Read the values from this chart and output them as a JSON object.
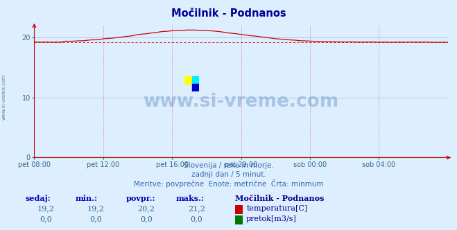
{
  "title": "Močilnik - Podnanos",
  "background_color": "#ddeeff",
  "plot_bg_color": "#ddeeff",
  "x_labels": [
    "pet 08:00",
    "pet 12:00",
    "pet 16:00",
    "pet 20:00",
    "sob 00:00",
    "sob 04:00"
  ],
  "ylim": [
    0,
    22
  ],
  "yticks": [
    0,
    10,
    20
  ],
  "temp_min": 19.2,
  "temp_max": 21.2,
  "temp_avg": 20.2,
  "temp_current": 19.2,
  "temp_color": "#cc0000",
  "flow_color": "#007700",
  "grid_color_v": "#dd8888",
  "grid_color_h": "#aabbcc",
  "watermark_color": "#3366aa",
  "subtitle_line1": "Slovenija / reke in morje.",
  "subtitle_line2": "zadnji dan / 5 minut.",
  "subtitle_line3": "Meritve: povprečne  Enote: metrične  Črta: minmum",
  "label_sedaj": "sedaj:",
  "label_min": "min.:",
  "label_povpr": "povpr.:",
  "label_maks": "maks.:",
  "legend_title": "Močilnik - Podnanos",
  "legend_temp": "temperatura[C]",
  "legend_flow": "pretok[m3/s]",
  "watermark": "www.si-vreme.com",
  "side_label": "www.si-vreme.com",
  "temp_vals": [
    "19,2",
    "19,2",
    "20,2",
    "21,2"
  ],
  "flow_vals": [
    "0,0",
    "0,0",
    "0,0",
    "0,0"
  ],
  "logo_colors": [
    "#ffff00",
    "#00eeff",
    "#0000cc"
  ],
  "title_color": "#000099",
  "label_color": "#0000bb",
  "value_color": "#336688",
  "text_color": "#3366aa",
  "spine_color": "#cc0000"
}
